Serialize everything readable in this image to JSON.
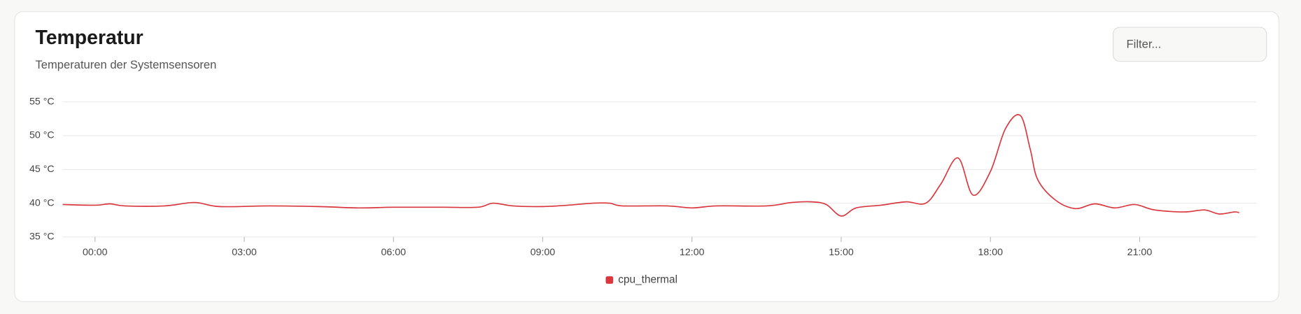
{
  "filter": {
    "placeholder": "Filter..."
  },
  "chart_data": {
    "type": "line",
    "title": "Temperatur",
    "subtitle": "Temperaturen der Systemsensoren",
    "x": [
      -0.65,
      0,
      0.3,
      0.6,
      1.4,
      2.0,
      2.5,
      3.5,
      4.5,
      5.3,
      6.0,
      7.0,
      7.7,
      8.0,
      8.4,
      9.0,
      9.5,
      10.0,
      10.35,
      10.6,
      11.5,
      12.0,
      12.5,
      13.5,
      14.0,
      14.4,
      14.7,
      15.0,
      15.3,
      15.8,
      16.3,
      16.7,
      17.0,
      17.35,
      17.65,
      18.0,
      18.3,
      18.6,
      18.8,
      18.95,
      19.3,
      19.7,
      20.1,
      20.5,
      20.9,
      21.3,
      21.9,
      22.3,
      22.6,
      22.9,
      23.0
    ],
    "series": [
      {
        "name": "cpu_thermal",
        "color": "#d9363e",
        "values": [
          39.8,
          39.7,
          39.9,
          39.6,
          39.6,
          40.1,
          39.5,
          39.6,
          39.5,
          39.3,
          39.4,
          39.4,
          39.4,
          40.0,
          39.6,
          39.5,
          39.7,
          40.0,
          40.0,
          39.6,
          39.6,
          39.3,
          39.6,
          39.6,
          40.1,
          40.2,
          39.8,
          38.1,
          39.3,
          39.7,
          40.2,
          40.0,
          42.8,
          46.7,
          41.2,
          44.7,
          51.0,
          53.0,
          48.0,
          43.5,
          40.5,
          39.2,
          39.9,
          39.3,
          39.8,
          39.0,
          38.7,
          39.0,
          38.4,
          38.7,
          38.6
        ]
      }
    ],
    "xlim": [
      -0.65,
      23.35
    ],
    "xticks": [
      {
        "value": 0,
        "label": "00:00"
      },
      {
        "value": 3,
        "label": "03:00"
      },
      {
        "value": 6,
        "label": "06:00"
      },
      {
        "value": 9,
        "label": "09:00"
      },
      {
        "value": 12,
        "label": "12:00"
      },
      {
        "value": 15,
        "label": "15:00"
      },
      {
        "value": 18,
        "label": "18:00"
      },
      {
        "value": 21,
        "label": "21:00"
      }
    ],
    "ylim": [
      35,
      55
    ],
    "yticks": [
      {
        "value": 35,
        "label": "35 °C"
      },
      {
        "value": 40,
        "label": "40 °C"
      },
      {
        "value": 45,
        "label": "45 °C"
      },
      {
        "value": 50,
        "label": "50 °C"
      },
      {
        "value": 55,
        "label": "55 °C"
      }
    ],
    "grid": true,
    "legend": "bottom"
  }
}
